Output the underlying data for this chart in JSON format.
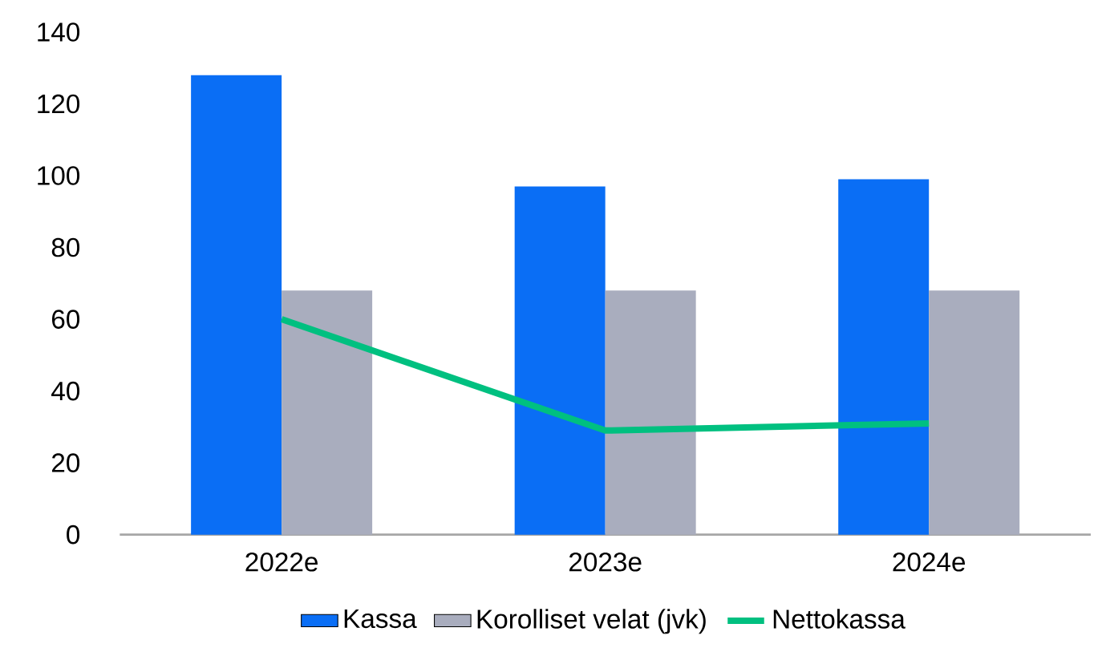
{
  "chart_data": {
    "type": "bar",
    "categories": [
      "2022e",
      "2023e",
      "2024e"
    ],
    "series": [
      {
        "name": "Kassa",
        "color": "#0a6ef5",
        "values": [
          128,
          97,
          99
        ]
      },
      {
        "name": "Korolliset velat (jvk)",
        "color": "#a9adbe",
        "values": [
          68,
          68,
          68
        ]
      },
      {
        "name": "Nettokassa",
        "type": "line",
        "color": "#00c080",
        "values": [
          60,
          29,
          31
        ]
      }
    ],
    "ylim": [
      0,
      140
    ],
    "yticks": [
      0,
      20,
      40,
      60,
      80,
      100,
      120,
      140
    ],
    "legend": "bottom",
    "grid": false
  }
}
